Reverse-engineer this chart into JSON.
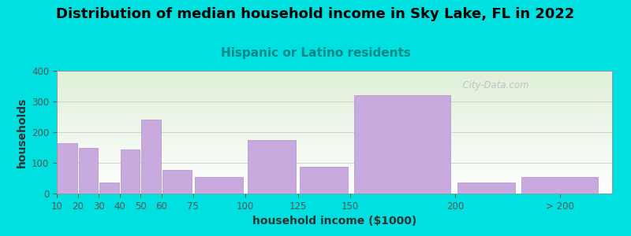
{
  "title": "Distribution of median household income in Sky Lake, FL in 2022",
  "subtitle": "Hispanic or Latino residents",
  "xlabel": "household income ($1000)",
  "ylabel": "households",
  "bar_left_edges": [
    10,
    20,
    30,
    40,
    50,
    60,
    75,
    100,
    125,
    150,
    200,
    230
  ],
  "bar_widths": [
    10,
    10,
    10,
    10,
    10,
    15,
    25,
    25,
    25,
    50,
    30,
    40
  ],
  "bar_values": [
    163,
    148,
    35,
    143,
    240,
    78,
    53,
    175,
    88,
    320,
    35,
    53
  ],
  "xtick_positions": [
    10,
    20,
    30,
    40,
    50,
    60,
    75,
    100,
    125,
    150,
    200,
    250
  ],
  "xtick_labels": [
    "10",
    "20",
    "30",
    "40",
    "50",
    "60",
    "75",
    "100",
    "125",
    "150",
    "200",
    "> 200"
  ],
  "bar_color": "#c9aade",
  "bar_edge_color": "#b090cc",
  "ylim": [
    0,
    400
  ],
  "yticks": [
    0,
    100,
    200,
    300,
    400
  ],
  "xlim": [
    10,
    275
  ],
  "background_outer": "#00e0e0",
  "plot_bg_gradient_top": "#dff0d8",
  "plot_bg_gradient_bottom": "#ffffff",
  "title_color": "#000000",
  "subtitle_color": "#008888",
  "axis_label_color": "#333333",
  "tick_color": "#555555",
  "watermark_text": "  City-Data.com",
  "watermark_color": "#bbbbbb",
  "title_fontsize": 13,
  "subtitle_fontsize": 11,
  "axis_label_fontsize": 10,
  "tick_fontsize": 8.5
}
